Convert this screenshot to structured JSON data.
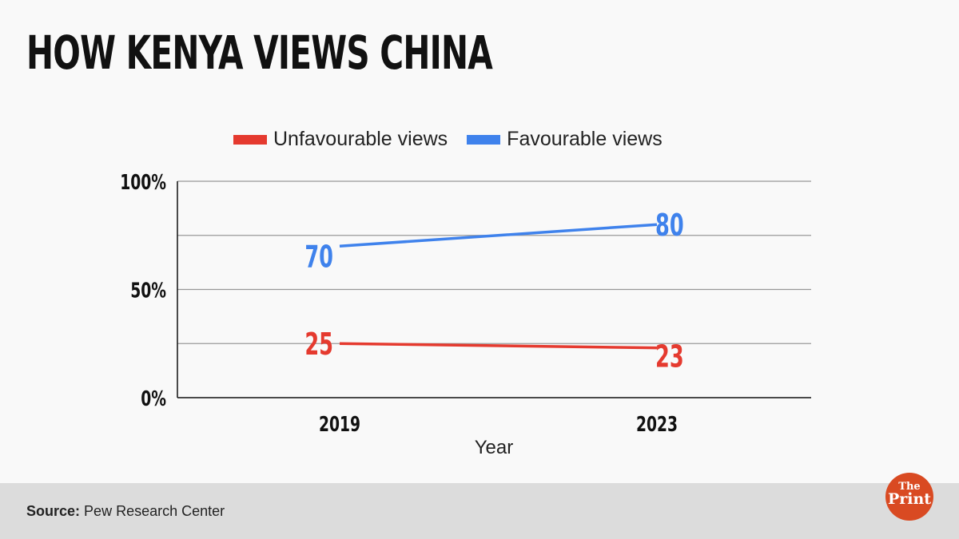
{
  "title": "HOW KENYA VIEWS CHINA",
  "source_label": "Source:",
  "source_text": "Pew Research Center",
  "logo": "The Print",
  "chart_data": {
    "type": "line",
    "title": "HOW KENYA VIEWS CHINA",
    "xlabel": "Year",
    "ylabel": "",
    "categories": [
      "2019",
      "2023"
    ],
    "ylim": [
      0,
      100
    ],
    "yticks": [
      "0%",
      "50%",
      "100%"
    ],
    "grid": true,
    "legend_position": "top",
    "series": [
      {
        "name": "Unfavourable views",
        "values": [
          25,
          23
        ],
        "color": "#e53a2f"
      },
      {
        "name": "Favourable views",
        "values": [
          70,
          80
        ],
        "color": "#3f82ec"
      }
    ]
  }
}
